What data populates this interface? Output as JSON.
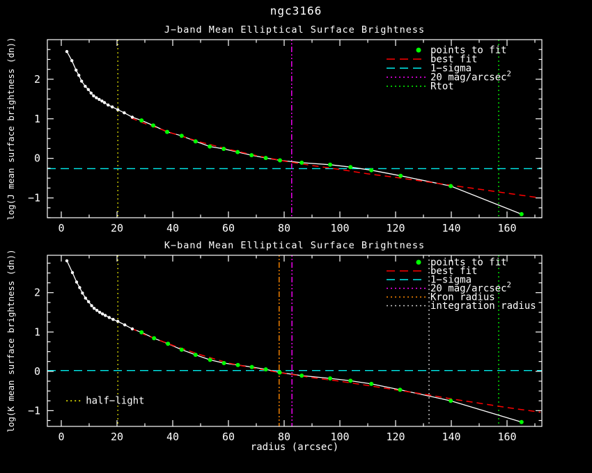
{
  "title": "ngc3166",
  "colors": {
    "background": "#000000",
    "foreground": "#ffffff"
  },
  "chart_data": [
    {
      "type": "line",
      "title": "J−band Mean Elliptical Surface Brightness",
      "xlabel": "",
      "ylabel": "log(J mean surface brightness (dn))",
      "xlim": [
        -5,
        172.5
      ],
      "ylim": [
        -1.5,
        3.0
      ],
      "xticks": [
        0,
        20,
        40,
        60,
        80,
        100,
        120,
        140,
        160
      ],
      "xtick_labels": [
        "0",
        "20",
        "40",
        "60",
        "80",
        "100",
        "120",
        "140",
        "160"
      ],
      "yticks": [
        -1,
        0,
        1,
        2
      ],
      "ytick_labels": [
        "−1",
        "0",
        "1",
        "2"
      ],
      "x_minor_step": 10,
      "y_minor_step": 0.25,
      "grid": false,
      "legend_position": "top-right-inside",
      "series": [
        {
          "name": "measured-inner",
          "role": "markers",
          "color": "#ffffff",
          "marker_radius": 2.2,
          "x": [
            2,
            3.8,
            5.3,
            6.3,
            7.3,
            8.6,
            9.7,
            10.7,
            11.6,
            12.6,
            13.6,
            14.6,
            15.5,
            16.8,
            18.3,
            20.3,
            22.6,
            25.5
          ],
          "y": [
            2.7,
            2.47,
            2.23,
            2.1,
            1.95,
            1.82,
            1.74,
            1.65,
            1.58,
            1.53,
            1.49,
            1.45,
            1.41,
            1.35,
            1.3,
            1.23,
            1.15,
            1.04
          ]
        },
        {
          "name": "points-to-fit",
          "role": "markers",
          "color": "#00ff00",
          "marker_radius": 3,
          "x": [
            28.8,
            33,
            38,
            43.2,
            48.2,
            53.3,
            58.3,
            63.3,
            68.3,
            73.4,
            78.5,
            86.3,
            96.5,
            103.8,
            111.3,
            121.8,
            139.8,
            165.2
          ],
          "y": [
            0.96,
            0.83,
            0.67,
            0.57,
            0.43,
            0.3,
            0.24,
            0.16,
            0.08,
            0.01,
            -0.05,
            -0.11,
            -0.16,
            -0.22,
            -0.3,
            -0.44,
            -0.7,
            -1.41
          ]
        },
        {
          "name": "profile-line",
          "role": "line",
          "color": "#ffffff",
          "style": "solid",
          "joins": [
            "measured-inner",
            "points-to-fit"
          ]
        },
        {
          "name": "best-fit",
          "role": "line",
          "color": "#ff0000",
          "style": "dashed",
          "x": [
            25,
            30,
            40,
            50,
            60,
            70,
            80,
            90,
            100,
            110,
            120,
            130,
            140,
            150,
            160,
            172
          ],
          "y": [
            1.02,
            0.88,
            0.63,
            0.41,
            0.23,
            0.07,
            -0.07,
            -0.18,
            -0.28,
            -0.39,
            -0.48,
            -0.58,
            -0.68,
            -0.78,
            -0.88,
            -1.0
          ]
        }
      ],
      "ref_lines": [
        {
          "name": "1-sigma",
          "orient": "h",
          "value": -0.26,
          "color": "#00eeee",
          "style": "dashed"
        },
        {
          "name": "half-light",
          "orient": "v",
          "value": 20.3,
          "color": "#cccc00",
          "style": "dotted"
        },
        {
          "name": "20-mag-arcsec2",
          "orient": "v",
          "value": 82.7,
          "color": "#ff00ff",
          "style": "dashdot"
        },
        {
          "name": "Rtot",
          "orient": "v",
          "value": 157,
          "color": "#00ee00",
          "style": "dotted"
        }
      ],
      "legend": [
        {
          "label": "points to fit",
          "color": "#00ff00",
          "swatch": "dot"
        },
        {
          "label": "best fit",
          "color": "#ff0000",
          "swatch": "dash"
        },
        {
          "label": "1−sigma",
          "color": "#00eeee",
          "swatch": "dash"
        },
        {
          "label": "20 mag/arcsec",
          "sup": "2",
          "color": "#ff00ff",
          "swatch": "dots"
        },
        {
          "label": "Rtot",
          "color": "#00ff00",
          "swatch": "dots"
        }
      ]
    },
    {
      "type": "line",
      "title": "K−band Mean Elliptical Surface Brightness",
      "xlabel": "radius (arcsec)",
      "ylabel": "log(K mean surface brightness (dn))",
      "xlim": [
        -5,
        172.5
      ],
      "ylim": [
        -1.4,
        2.95
      ],
      "xticks": [
        0,
        20,
        40,
        60,
        80,
        100,
        120,
        140,
        160
      ],
      "xtick_labels": [
        "0",
        "20",
        "40",
        "60",
        "80",
        "100",
        "120",
        "140",
        "160"
      ],
      "yticks": [
        -1,
        0,
        1,
        2
      ],
      "ytick_labels": [
        "−1",
        "0",
        "1",
        "2"
      ],
      "x_minor_step": 10,
      "y_minor_step": 0.25,
      "grid": false,
      "legend_position": "top-right-inside",
      "series": [
        {
          "name": "measured-inner",
          "role": "markers",
          "color": "#ffffff",
          "marker_radius": 2.2,
          "x": [
            2,
            4,
            5.5,
            6.6,
            7.6,
            8.7,
            9.8,
            10.9,
            11.8,
            12.8,
            13.8,
            14.8,
            15.8,
            17.2,
            18.6,
            20.3,
            22.8,
            25.5
          ],
          "y": [
            2.81,
            2.51,
            2.27,
            2.13,
            1.99,
            1.86,
            1.77,
            1.67,
            1.6,
            1.55,
            1.5,
            1.46,
            1.42,
            1.37,
            1.32,
            1.27,
            1.18,
            1.08
          ]
        },
        {
          "name": "points-to-fit",
          "role": "markers",
          "color": "#00ff00",
          "marker_radius": 3,
          "x": [
            28.8,
            33.3,
            38.3,
            43.2,
            48.2,
            53.4,
            58.4,
            63.4,
            68.4,
            73.4,
            78.4,
            86.3,
            96.5,
            103.8,
            111.3,
            121.6,
            139.8,
            165.2
          ],
          "y": [
            0.99,
            0.84,
            0.7,
            0.55,
            0.42,
            0.29,
            0.21,
            0.16,
            0.11,
            0.05,
            -0.03,
            -0.11,
            -0.18,
            -0.24,
            -0.32,
            -0.47,
            -0.75,
            -1.29
          ]
        },
        {
          "name": "profile-line",
          "role": "line",
          "color": "#ffffff",
          "style": "solid",
          "joins": [
            "measured-inner",
            "points-to-fit"
          ]
        },
        {
          "name": "best-fit",
          "role": "line",
          "color": "#ff0000",
          "style": "dashed",
          "x": [
            25,
            30,
            40,
            50,
            60,
            70,
            80,
            90,
            100,
            110,
            120,
            130,
            140,
            150,
            160,
            172
          ],
          "y": [
            1.1,
            0.93,
            0.66,
            0.42,
            0.21,
            0.07,
            -0.05,
            -0.16,
            -0.25,
            -0.36,
            -0.47,
            -0.58,
            -0.7,
            -0.81,
            -0.92,
            -1.04
          ]
        }
      ],
      "ref_lines": [
        {
          "name": "1-sigma",
          "orient": "h",
          "value": 0.02,
          "color": "#00eeee",
          "style": "dashed"
        },
        {
          "name": "half-light",
          "orient": "v",
          "value": 20.3,
          "color": "#cccc00",
          "style": "dotted"
        },
        {
          "name": "Kron-radius",
          "orient": "v",
          "value": 78.2,
          "color": "#ff8800",
          "style": "dashdot"
        },
        {
          "name": "20-mag-arcsec2",
          "orient": "v",
          "value": 82.8,
          "color": "#ff00ff",
          "style": "dashdot"
        },
        {
          "name": "integration-radius",
          "orient": "v",
          "value": 132,
          "color": "#cccccc",
          "style": "dotted"
        },
        {
          "name": "Rtot",
          "orient": "v",
          "value": 157,
          "color": "#00ee00",
          "style": "dotted"
        }
      ],
      "legend": [
        {
          "label": "points to fit",
          "color": "#00ff00",
          "swatch": "dot"
        },
        {
          "label": "best fit",
          "color": "#ff0000",
          "swatch": "dash"
        },
        {
          "label": "1−sigma",
          "color": "#00eeee",
          "swatch": "dash"
        },
        {
          "label": "20 mag/arcsec",
          "sup": "2",
          "color": "#ff00ff",
          "swatch": "dots"
        },
        {
          "label": "Kron radius",
          "color": "#ff8800",
          "swatch": "dots"
        },
        {
          "label": "integration radius",
          "color": "#cccccc",
          "swatch": "dots"
        }
      ],
      "annotation": {
        "text": "half−light",
        "color": "#ffff00",
        "x": 8.8,
        "y": -0.75,
        "sample_x": [
          1.8,
          7.5
        ]
      }
    }
  ]
}
